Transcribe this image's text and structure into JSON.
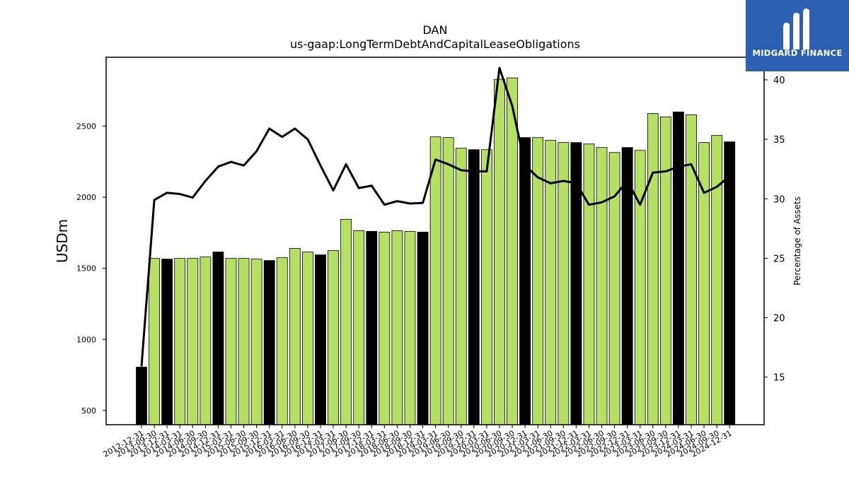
{
  "chart_data": {
    "type": "bar",
    "title": "DAN",
    "subtitle": "us-gaap:LongTermDebtAndCapitalLeaseObligations",
    "ylabel": "USDm",
    "y2label": "Percentage of Assets",
    "ylim": [
      400,
      2985
    ],
    "y2lim": [
      11.0,
      41.9
    ],
    "yticks": [
      500,
      1000,
      1500,
      2000,
      2500
    ],
    "y2ticks": [
      15,
      20,
      25,
      30,
      35,
      40
    ],
    "categories": [
      "2012-12-31",
      "2013-09-30",
      "2013-12-31",
      "2014-03-31",
      "2014-06-30",
      "2014-09-30",
      "2014-12-31",
      "2015-03-31",
      "2015-06-30",
      "2015-09-30",
      "2015-12-31",
      "2016-03-31",
      "2016-06-30",
      "2016-09-30",
      "2016-12-31",
      "2017-03-31",
      "2017-06-30",
      "2017-09-30",
      "2017-12-31",
      "2018-03-31",
      "2018-06-30",
      "2018-09-30",
      "2018-12-31",
      "2019-03-31",
      "2019-06-30",
      "2019-09-30",
      "2019-12-31",
      "2020-03-31",
      "2020-06-30",
      "2020-09-30",
      "2020-12-31",
      "2021-03-31",
      "2021-06-30",
      "2021-09-30",
      "2021-12-31",
      "2022-03-31",
      "2022-06-30",
      "2022-09-30",
      "2022-12-31",
      "2023-03-31",
      "2023-06-30",
      "2023-09-30",
      "2023-12-31",
      "2024-03-31",
      "2024-06-30",
      "2024-09-30",
      "2024-12-31"
    ],
    "series": [
      {
        "type": "bar",
        "values": [
          805,
          1570,
          1565,
          1570,
          1570,
          1580,
          1615,
          1570,
          1570,
          1565,
          1555,
          1575,
          1640,
          1615,
          1595,
          1625,
          1845,
          1765,
          1760,
          1755,
          1765,
          1760,
          1755,
          2425,
          2420,
          2345,
          2335,
          2335,
          2830,
          2840,
          2420,
          2420,
          2400,
          2385,
          2385,
          2375,
          2350,
          2315,
          2350,
          2330,
          2590,
          2565,
          2600,
          2580,
          2385,
          2435,
          2390
        ]
      },
      {
        "type": "line",
        "axis": "right",
        "values": [
          15.9,
          29.9,
          30.5,
          30.4,
          30.1,
          31.5,
          32.7,
          33.1,
          32.8,
          34.0,
          35.9,
          35.2,
          35.9,
          35.0,
          32.8,
          30.7,
          32.9,
          30.9,
          31.1,
          29.5,
          29.8,
          29.6,
          29.65,
          33.3,
          32.9,
          32.4,
          32.3,
          32.3,
          41.0,
          37.8,
          32.8,
          31.8,
          31.3,
          31.5,
          31.3,
          29.5,
          29.7,
          30.2,
          31.5,
          29.5,
          32.2,
          32.3,
          32.7,
          32.9,
          30.5,
          31.0,
          31.9
        ]
      }
    ],
    "colors": {
      "bar_regular": "#b5df65",
      "bar_year_end": "#000000",
      "line": "#000000"
    }
  },
  "logo": {
    "text": "MIDGARD FINANCE"
  }
}
